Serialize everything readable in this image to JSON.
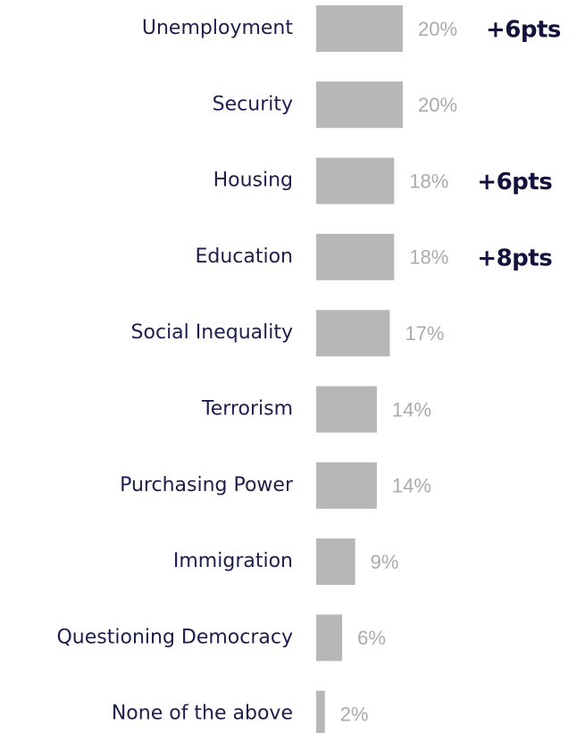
{
  "chart_data": {
    "type": "bar",
    "orientation": "horizontal",
    "categories": [
      "Unemployment",
      "Security",
      "Housing",
      "Education",
      "Social Inequality",
      "Terrorism",
      "Purchasing Power",
      "Immigration",
      "Questioning Democracy",
      "None of the above"
    ],
    "values": [
      20,
      20,
      18,
      18,
      17,
      14,
      14,
      9,
      6,
      2
    ],
    "value_labels": [
      "20%",
      "20%",
      "18%",
      "18%",
      "17%",
      "14%",
      "14%",
      "9%",
      "6%",
      "2%"
    ],
    "annotations": [
      "+6pts",
      null,
      "+6pts",
      "+8pts",
      null,
      null,
      null,
      null,
      null,
      null
    ],
    "color": "#b7b7b7"
  }
}
